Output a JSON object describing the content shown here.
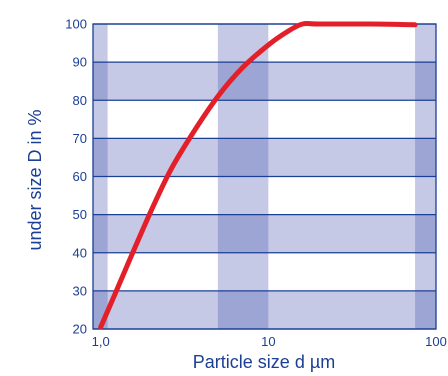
{
  "chart_data": {
    "type": "line",
    "xlabel": "Particle size d µm",
    "ylabel": "under size D in %",
    "x_scale": "log",
    "xlim": [
      0.9,
      100
    ],
    "ylim": [
      20,
      100
    ],
    "x_ticks": [
      {
        "value": 1,
        "label": "1,0"
      },
      {
        "value": 10,
        "label": "10"
      },
      {
        "value": 100,
        "label": "100"
      }
    ],
    "y_ticks": [
      {
        "value": 20,
        "label": "20"
      },
      {
        "value": 30,
        "label": "30"
      },
      {
        "value": 40,
        "label": "40"
      },
      {
        "value": 50,
        "label": "50"
      },
      {
        "value": 60,
        "label": "60"
      },
      {
        "value": 70,
        "label": "70"
      },
      {
        "value": 80,
        "label": "80"
      },
      {
        "value": 90,
        "label": "90"
      },
      {
        "value": 100,
        "label": "100"
      }
    ],
    "shaded_x_bands": [
      [
        0.9,
        1.1
      ],
      [
        5,
        10
      ],
      [
        75,
        100
      ]
    ],
    "shaded_y_bands": [
      [
        20,
        30
      ],
      [
        40,
        50
      ],
      [
        60,
        70
      ],
      [
        80,
        90
      ]
    ],
    "series": [
      {
        "color": "#e3202a",
        "x": [
          1.0,
          1.2,
          1.5,
          2.0,
          2.6,
          3.5,
          5.0,
          7.0,
          10.0,
          13.0,
          16.0,
          20.0,
          40.0,
          75.0
        ],
        "y": [
          20.5,
          28.5,
          38.5,
          51.0,
          61.5,
          71.0,
          81.0,
          88.5,
          94.5,
          98.0,
          100.0,
          100.0,
          100.0,
          99.8
        ]
      }
    ],
    "colors": {
      "band": "#c5c9e6",
      "band_overlap": "#9ca5d4",
      "grid": "#1b3f94",
      "text": "#1b3f94"
    }
  }
}
